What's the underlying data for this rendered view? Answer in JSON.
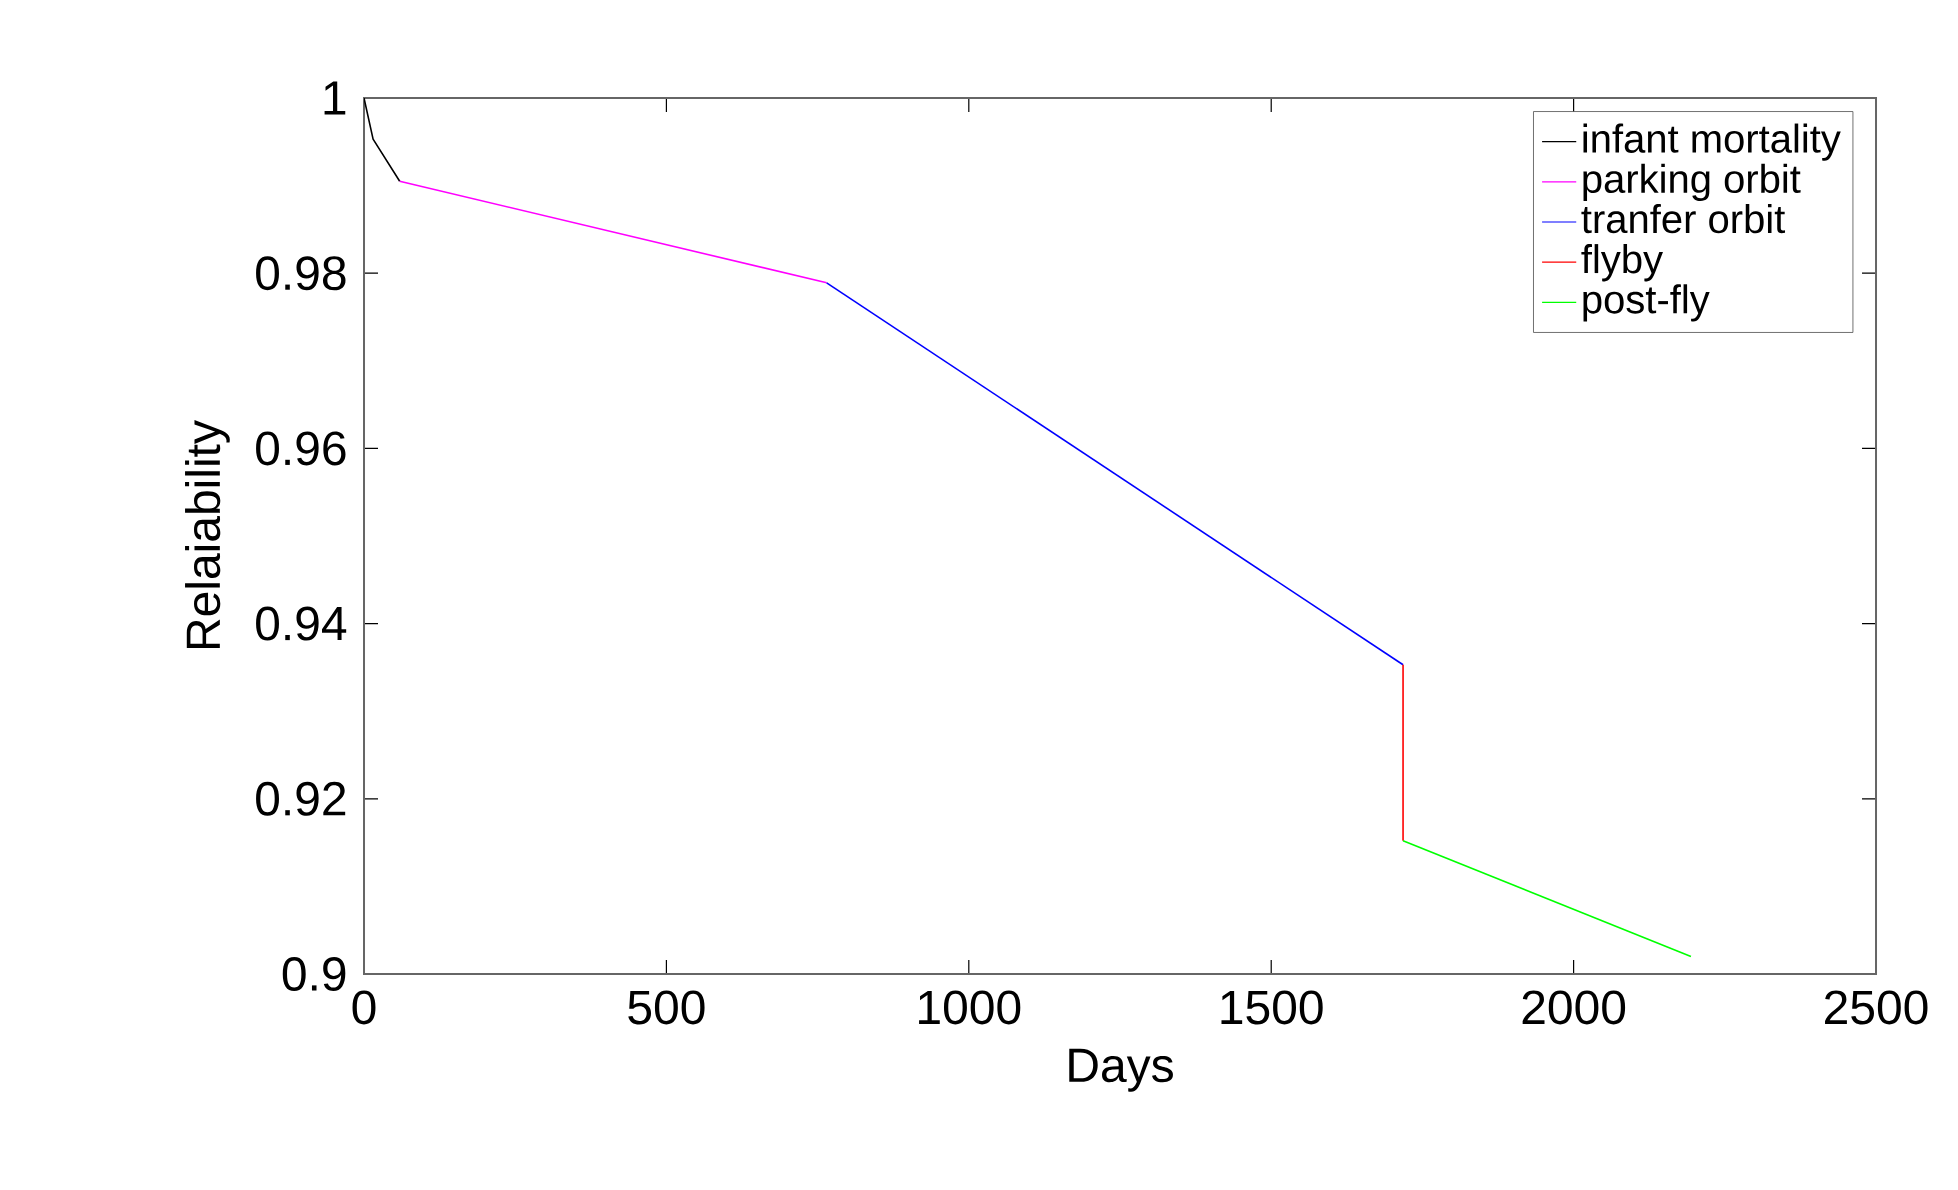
{
  "chart_data": {
    "type": "line",
    "xlabel": "Days",
    "ylabel": "Relaiability",
    "xlim": [
      0,
      2500
    ],
    "xticks": [
      0,
      500,
      1000,
      1500,
      2000,
      2500
    ],
    "ylim": [
      0.9,
      1
    ],
    "yticks": [
      0.9,
      0.92,
      0.94,
      0.96,
      0.98,
      1
    ],
    "grid": false,
    "legend": "top right",
    "marker": "none",
    "line_style": "solid",
    "series": [
      {
        "name": "infant mortality",
        "color": "#000000",
        "x": [
          0,
          15,
          59
        ],
        "values": [
          1,
          0.9953,
          0.9905
        ]
      },
      {
        "name": "parking orbit",
        "color": "#ff00ff",
        "x": [
          59,
          765
        ],
        "values": [
          0.9905,
          0.9789
        ]
      },
      {
        "name": "tranfer orbit",
        "color": "#0000ff",
        "x": [
          765,
          1718
        ],
        "values": [
          0.9789,
          0.9353
        ]
      },
      {
        "name": "flyby",
        "color": "#ff0000",
        "x": [
          1718,
          1718
        ],
        "values": [
          0.9353,
          0.9152
        ]
      },
      {
        "name": "post-fly",
        "color": "#00ff00",
        "x": [
          1718,
          2194
        ],
        "values": [
          0.9152,
          0.902
        ]
      }
    ]
  }
}
